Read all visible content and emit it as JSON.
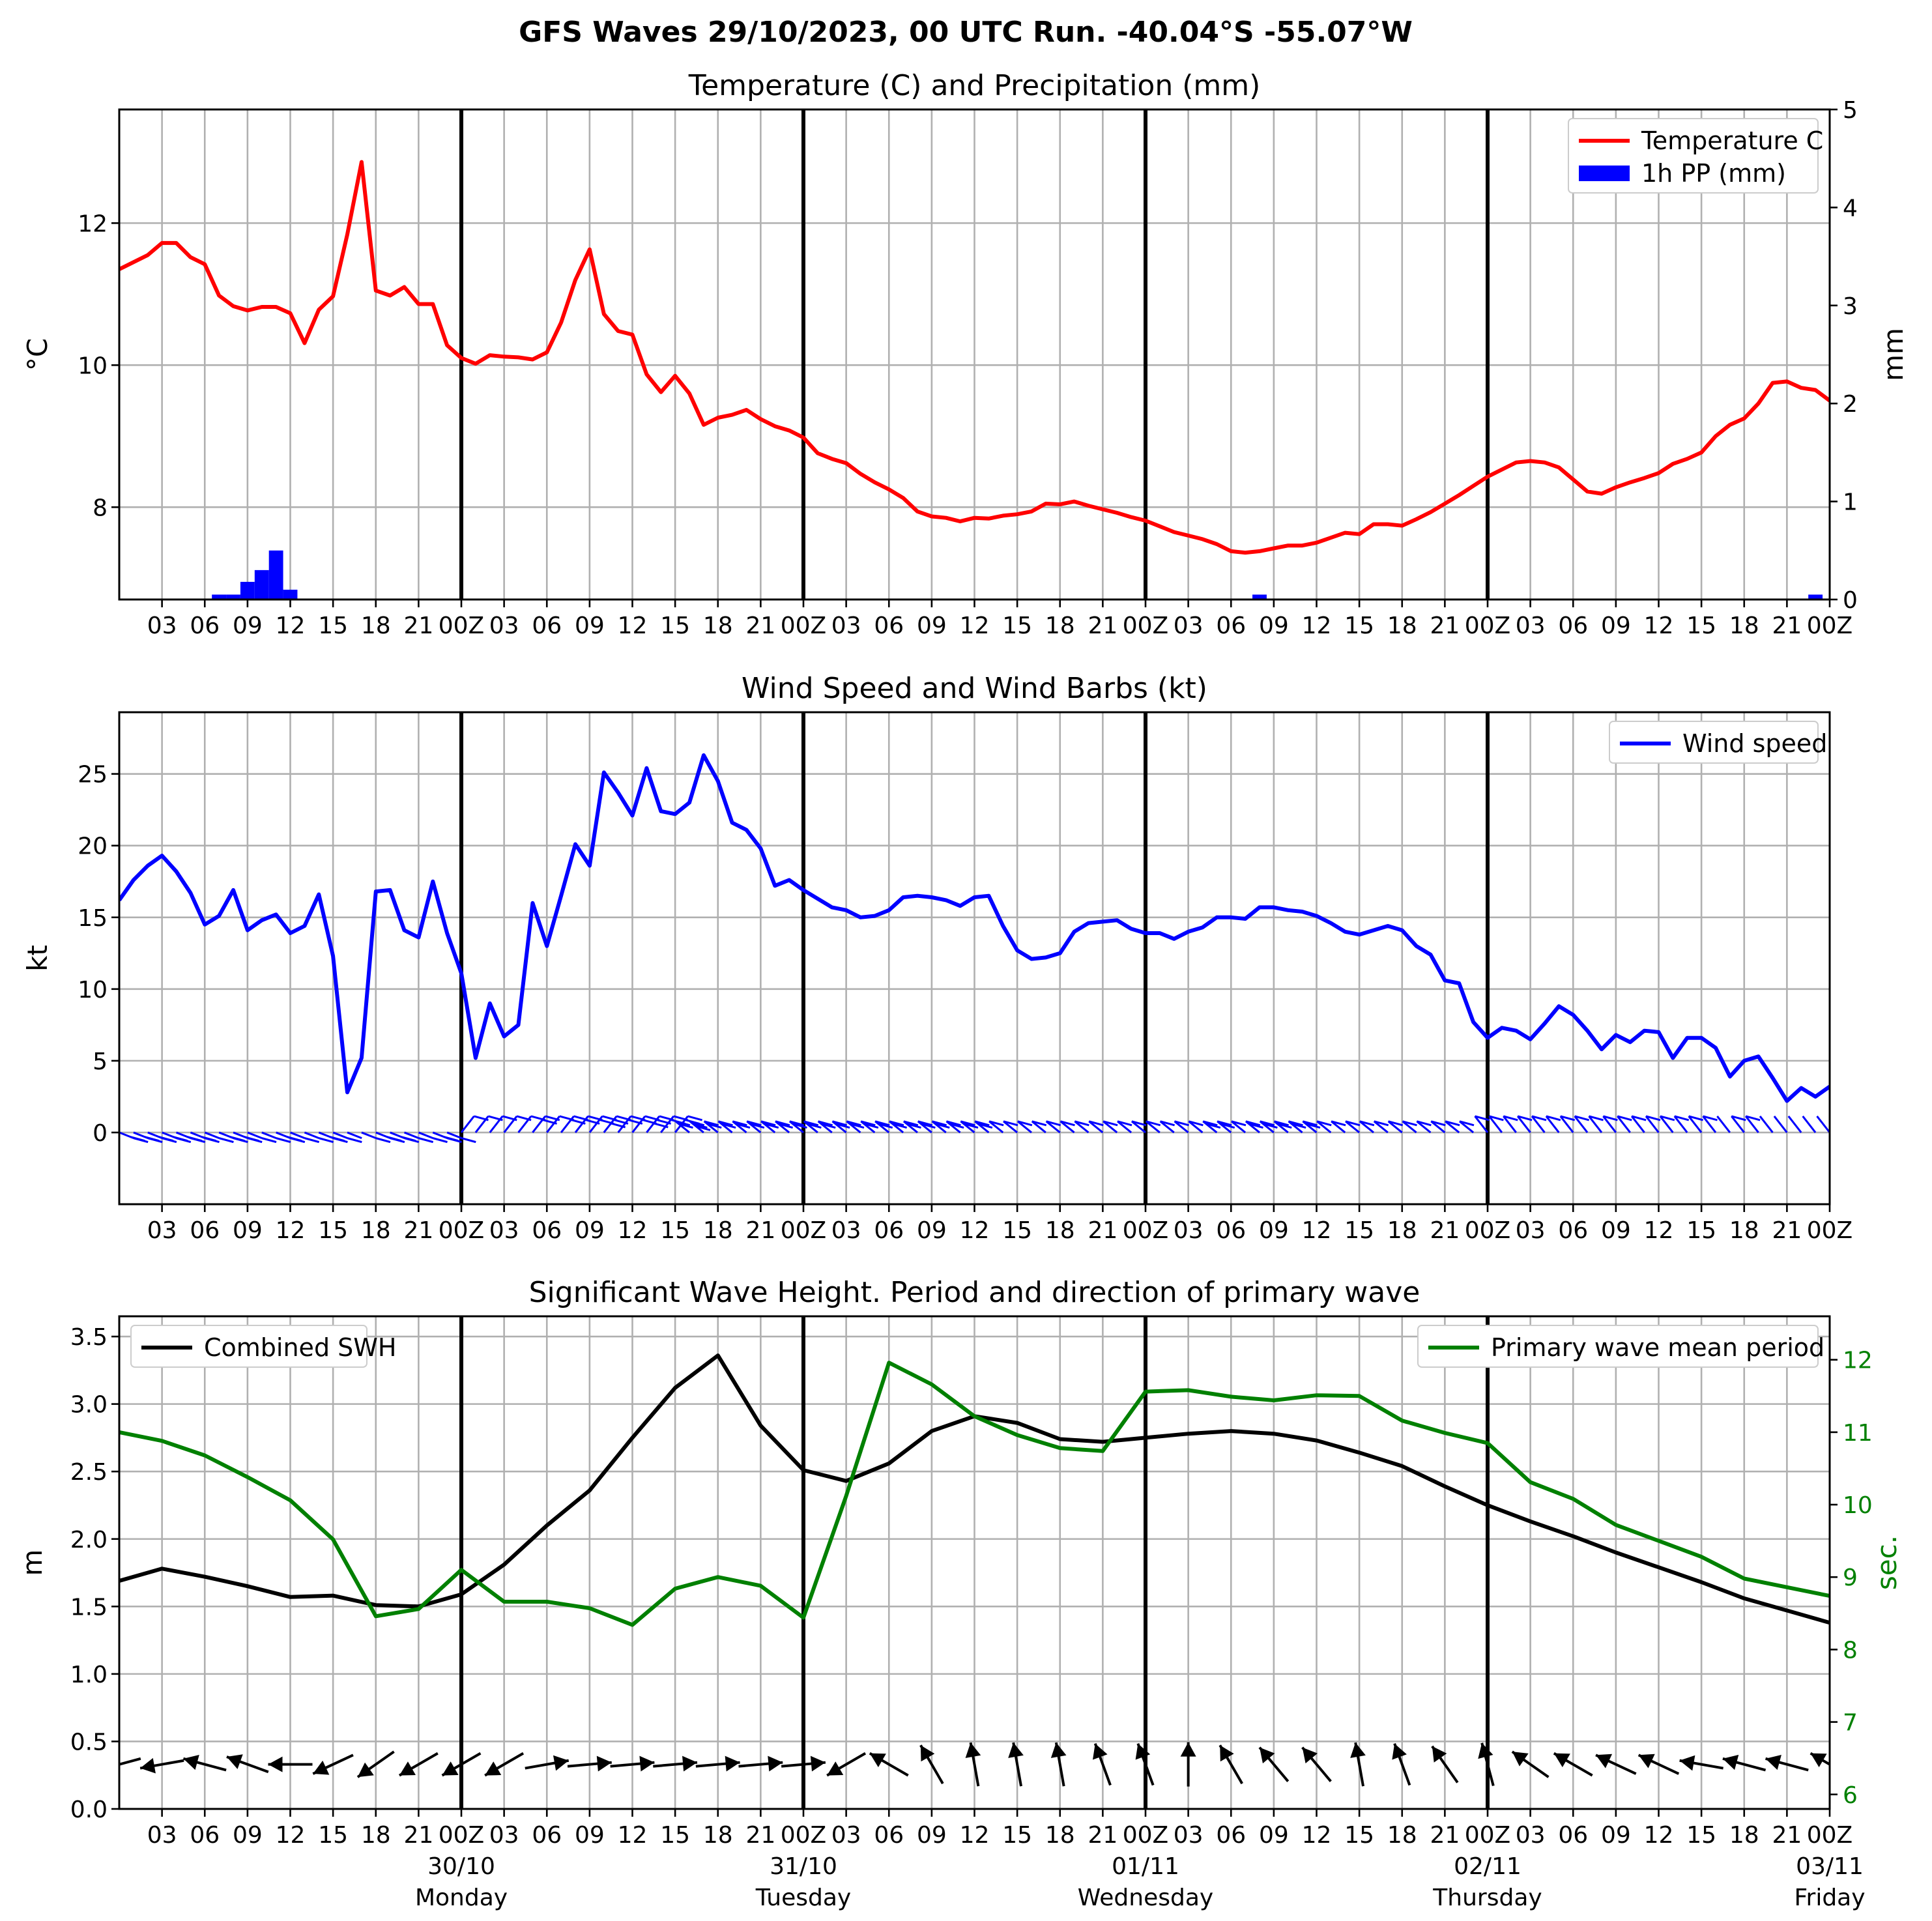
{
  "suptitle": "GFS Waves 29/10/2023, 00 UTC Run. -40.04°S -55.07°W",
  "colors": {
    "temperature": "#ff0000",
    "precipitation": "#0000ff",
    "wind": "#0000ff",
    "swh": "#000000",
    "period": "#008000",
    "grid": "#b0b0b0"
  },
  "time_axis": {
    "tick_hours": [
      0,
      3,
      6,
      9,
      12,
      15,
      18,
      21
    ],
    "tick_labels": [
      "00Z",
      "03",
      "06",
      "09",
      "12",
      "15",
      "18",
      "21"
    ],
    "day_labels": [
      {
        "hour": 24,
        "date": "30/10",
        "weekday": "Monday"
      },
      {
        "hour": 48,
        "date": "31/10",
        "weekday": "Tuesday"
      },
      {
        "hour": 72,
        "date": "01/11",
        "weekday": "Wednesday"
      },
      {
        "hour": 96,
        "date": "02/11",
        "weekday": "Thursday"
      },
      {
        "hour": 120,
        "date": "03/11",
        "weekday": "Friday"
      }
    ]
  },
  "chart_data": [
    {
      "type": "line",
      "title": "Temperature (C) and Precipitation (mm)",
      "ylabel": "°C",
      "ylabel_right": "mm",
      "xlim": [
        0,
        120
      ],
      "ylim": [
        6.7,
        13.6
      ],
      "ylim_right": [
        0,
        5
      ],
      "yticks": [
        8,
        10,
        12
      ],
      "yticks_right": [
        0,
        1,
        2,
        3,
        4,
        5
      ],
      "grid": true,
      "legend": "top-right",
      "series": [
        {
          "name": "Temperature C",
          "color": "#ff0000",
          "x": [
            0,
            1,
            2,
            3,
            4,
            5,
            6,
            7,
            8,
            9,
            10,
            11,
            12,
            13,
            14,
            15,
            16,
            17,
            18,
            19,
            20,
            21,
            22,
            23,
            24,
            25,
            26,
            27,
            28,
            29,
            30,
            31,
            32,
            33,
            34,
            35,
            36,
            37,
            38,
            39,
            40,
            41,
            42,
            43,
            44,
            45,
            46,
            47,
            48,
            49,
            50,
            51,
            52,
            53,
            54,
            55,
            56,
            57,
            58,
            59,
            60,
            61,
            62,
            63,
            64,
            65,
            66,
            67,
            68,
            69,
            70,
            71,
            72,
            73,
            74,
            75,
            76,
            77,
            78,
            79,
            80,
            81,
            82,
            83,
            84,
            85,
            86,
            87,
            88,
            89,
            90,
            91,
            92,
            93,
            94,
            95,
            96,
            97,
            98,
            99,
            100,
            101,
            102,
            103,
            104,
            105,
            106,
            107,
            108,
            109,
            110,
            111,
            112,
            113,
            114,
            115,
            116,
            117,
            118,
            119,
            120
          ],
          "values": [
            11.35,
            11.45,
            11.55,
            11.72,
            11.72,
            11.52,
            11.42,
            10.98,
            10.83,
            10.77,
            10.82,
            10.82,
            10.73,
            10.31,
            10.78,
            10.97,
            11.84,
            12.86,
            11.05,
            10.98,
            11.1,
            10.86,
            10.86,
            10.28,
            10.1,
            10.02,
            10.14,
            10.12,
            10.11,
            10.08,
            10.18,
            10.6,
            11.2,
            11.63,
            10.72,
            10.48,
            10.43,
            9.87,
            9.62,
            9.85,
            9.6,
            9.16,
            9.26,
            9.3,
            9.37,
            9.24,
            9.14,
            9.08,
            8.98,
            8.76,
            8.68,
            8.62,
            8.47,
            8.35,
            8.25,
            8.13,
            7.94,
            7.87,
            7.85,
            7.8,
            7.85,
            7.84,
            7.88,
            7.9,
            7.94,
            8.05,
            8.04,
            8.08,
            8.02,
            7.97,
            7.92,
            7.86,
            7.81,
            7.73,
            7.65,
            7.6,
            7.55,
            7.48,
            7.38,
            7.36,
            7.38,
            7.42,
            7.46,
            7.46,
            7.5,
            7.57,
            7.64,
            7.62,
            7.76,
            7.76,
            7.74,
            7.83,
            7.93,
            8.05,
            8.17,
            8.3,
            8.43,
            8.53,
            8.63,
            8.65,
            8.63,
            8.56,
            8.39,
            8.22,
            8.19,
            8.28,
            8.35,
            8.41,
            8.48,
            8.61,
            8.68,
            8.77,
            9.0,
            9.16,
            9.25,
            9.46,
            9.75,
            9.77,
            9.68,
            9.65,
            9.5
          ]
        },
        {
          "name": "1h PP (mm)",
          "type": "bar",
          "axis": "right",
          "color": "#0000ff",
          "x": [
            7,
            8,
            9,
            10,
            11,
            12,
            80,
            119
          ],
          "values": [
            0.05,
            0.05,
            0.18,
            0.3,
            0.5,
            0.1,
            0.05,
            0.05
          ]
        }
      ]
    },
    {
      "type": "line",
      "title": "Wind Speed and Wind Barbs (kt)",
      "ylabel": "kt",
      "xlim": [
        0,
        120
      ],
      "ylim": [
        -5,
        29.3
      ],
      "yticks": [
        0,
        5,
        10,
        15,
        20,
        25
      ],
      "grid": true,
      "legend": "top-right",
      "series": [
        {
          "name": "Wind speed",
          "color": "#0000ff",
          "x": [
            0,
            1,
            2,
            3,
            4,
            5,
            6,
            7,
            8,
            9,
            10,
            11,
            12,
            13,
            14,
            15,
            16,
            17,
            18,
            19,
            20,
            21,
            22,
            23,
            24,
            25,
            26,
            27,
            28,
            29,
            30,
            31,
            32,
            33,
            34,
            35,
            36,
            37,
            38,
            39,
            40,
            41,
            42,
            43,
            44,
            45,
            46,
            47,
            48,
            49,
            50,
            51,
            52,
            53,
            54,
            55,
            56,
            57,
            58,
            59,
            60,
            61,
            62,
            63,
            64,
            65,
            66,
            67,
            68,
            69,
            70,
            71,
            72,
            73,
            74,
            75,
            76,
            77,
            78,
            79,
            80,
            81,
            82,
            83,
            84,
            85,
            86,
            87,
            88,
            89,
            90,
            91,
            92,
            93,
            94,
            95,
            96,
            97,
            98,
            99,
            100,
            101,
            102,
            103,
            104,
            105,
            106,
            107,
            108,
            109,
            110,
            111,
            112,
            113,
            114,
            115,
            116,
            117,
            118,
            119,
            120
          ],
          "values": [
            16.2,
            17.6,
            18.6,
            19.3,
            18.2,
            16.7,
            14.5,
            15.1,
            16.9,
            14.1,
            14.8,
            15.2,
            13.9,
            14.4,
            16.6,
            12.3,
            2.8,
            5.2,
            16.8,
            16.9,
            14.1,
            13.6,
            17.5,
            13.9,
            11.1,
            5.2,
            9.0,
            6.7,
            7.5,
            16.0,
            13.0,
            16.5,
            20.1,
            18.6,
            25.1,
            23.7,
            22.1,
            25.4,
            22.4,
            22.2,
            23.0,
            26.3,
            24.5,
            21.6,
            21.1,
            19.8,
            17.2,
            17.6,
            16.9,
            16.3,
            15.7,
            15.5,
            15.0,
            15.1,
            15.5,
            16.4,
            16.5,
            16.4,
            16.2,
            15.8,
            16.4,
            16.5,
            14.4,
            12.7,
            12.1,
            12.2,
            12.5,
            14.0,
            14.6,
            14.7,
            14.8,
            14.2,
            13.9,
            13.9,
            13.5,
            14.0,
            14.3,
            15.0,
            15.0,
            14.9,
            15.7,
            15.7,
            15.5,
            15.4,
            15.1,
            14.6,
            14.0,
            13.8,
            14.1,
            14.4,
            14.1,
            13.0,
            12.4,
            10.6,
            10.4,
            7.7,
            6.6,
            7.3,
            7.1,
            6.5,
            7.6,
            8.8,
            8.2,
            7.1,
            5.8,
            6.8,
            6.3,
            7.1,
            7.0,
            5.2,
            6.6,
            6.6,
            5.9,
            3.9,
            5.0,
            5.3,
            3.8,
            2.2,
            3.1,
            2.5,
            3.2
          ]
        }
      ]
    },
    {
      "type": "line",
      "title": "Significant Wave Height. Period and direction of primary wave",
      "ylabel": "m",
      "ylabel_right": "sec.",
      "xlim": [
        0,
        120
      ],
      "ylim": [
        0,
        3.65
      ],
      "ylim_right": [
        5.8,
        12.6
      ],
      "yticks": [
        0.0,
        0.5,
        1.0,
        1.5,
        2.0,
        2.5,
        3.0,
        3.5
      ],
      "yticks_right": [
        6,
        7,
        8,
        9,
        10,
        11,
        12
      ],
      "grid": true,
      "series": [
        {
          "name": "Combined SWH",
          "color": "#000000",
          "legend": "top-left",
          "x": [
            0,
            3,
            6,
            9,
            12,
            15,
            18,
            21,
            24,
            27,
            30,
            33,
            36,
            39,
            42,
            45,
            48,
            51,
            54,
            57,
            60,
            63,
            66,
            69,
            72,
            75,
            78,
            81,
            84,
            87,
            90,
            93,
            96,
            99,
            102,
            105,
            108,
            111,
            114,
            117,
            120
          ],
          "values": [
            1.69,
            1.78,
            1.72,
            1.65,
            1.57,
            1.58,
            1.51,
            1.5,
            1.59,
            1.81,
            2.1,
            2.36,
            2.75,
            3.12,
            3.36,
            2.84,
            2.51,
            2.43,
            2.56,
            2.8,
            2.91,
            2.86,
            2.74,
            2.72,
            2.75,
            2.78,
            2.8,
            2.78,
            2.73,
            2.64,
            2.54,
            2.39,
            2.25,
            2.13,
            2.02,
            1.9,
            1.79,
            1.68,
            1.56,
            1.47,
            1.38
          ]
        },
        {
          "name": "Primary wave mean period",
          "color": "#008000",
          "axis": "right",
          "legend": "top-right",
          "x": [
            0,
            3,
            6,
            9,
            12,
            15,
            18,
            21,
            24,
            27,
            30,
            33,
            36,
            39,
            42,
            45,
            48,
            51,
            54,
            57,
            60,
            63,
            66,
            69,
            72,
            75,
            78,
            81,
            84,
            87,
            90,
            93,
            96,
            99,
            102,
            105,
            108,
            111,
            114,
            117,
            120
          ],
          "values": [
            11.0,
            10.88,
            10.68,
            10.38,
            10.06,
            9.52,
            8.46,
            8.56,
            9.1,
            8.66,
            8.66,
            8.57,
            8.34,
            8.84,
            9.0,
            8.88,
            8.44,
            10.12,
            11.96,
            11.66,
            11.22,
            10.96,
            10.78,
            10.74,
            11.56,
            11.58,
            11.49,
            11.44,
            11.51,
            11.5,
            11.16,
            10.99,
            10.85,
            10.31,
            10.08,
            9.72,
            9.5,
            9.28,
            8.98,
            8.86,
            8.74
          ]
        }
      ],
      "wave_direction_deg": [
        255,
        260,
        285,
        290,
        270,
        245,
        235,
        240,
        240,
        240,
        80,
        85,
        85,
        85,
        85,
        85,
        85,
        240,
        300,
        330,
        350,
        350,
        350,
        340,
        340,
        0,
        330,
        320,
        320,
        350,
        340,
        325,
        345,
        305,
        300,
        295,
        295,
        280,
        285,
        285,
        300
      ]
    }
  ]
}
